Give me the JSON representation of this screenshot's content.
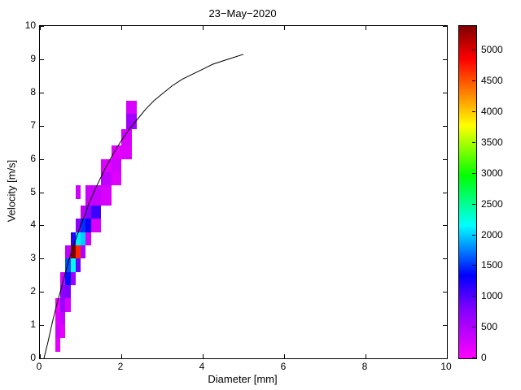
{
  "figure": {
    "background": "#ffffff",
    "axis_color": "#000000"
  },
  "chart_data": {
    "type": "heatmap",
    "title": "23−May−2020",
    "xlabel": "Diameter [mm]",
    "ylabel": "Velocity [m/s]",
    "xlim": [
      0,
      10
    ],
    "ylim": [
      0,
      10
    ],
    "x_ticks": [
      0,
      2,
      4,
      6,
      8,
      10
    ],
    "y_ticks": [
      0,
      1,
      2,
      3,
      4,
      5,
      6,
      7,
      8,
      9,
      10
    ],
    "grid": false,
    "legend": "none",
    "colorbar": {
      "position": "right",
      "vmin": 0,
      "vmax": 5400,
      "ticks": [
        0,
        500,
        1000,
        1500,
        2000,
        2500,
        3000,
        3500,
        4000,
        4500,
        5000
      ]
    },
    "colormap": [
      {
        "t": 0.0,
        "color": "#ff00ff"
      },
      {
        "t": 0.15,
        "color": "#8000ff"
      },
      {
        "t": 0.25,
        "color": "#0000ff"
      },
      {
        "t": 0.4,
        "color": "#00ffff"
      },
      {
        "t": 0.55,
        "color": "#00ff00"
      },
      {
        "t": 0.7,
        "color": "#ffff00"
      },
      {
        "t": 0.8,
        "color": "#ff8000"
      },
      {
        "t": 0.9,
        "color": "#ff0000"
      },
      {
        "t": 1.0,
        "color": "#800000"
      }
    ],
    "cells_format": "[diameter_left_mm, velocity_bottom_ms, width_mm, height_ms, count]",
    "cells": [
      [
        0.375,
        0.2,
        0.125,
        0.4,
        180
      ],
      [
        0.375,
        0.6,
        0.125,
        0.4,
        300
      ],
      [
        0.375,
        1.0,
        0.125,
        0.4,
        220
      ],
      [
        0.375,
        1.4,
        0.125,
        0.4,
        120
      ],
      [
        0.5,
        0.6,
        0.125,
        0.4,
        150
      ],
      [
        0.5,
        1.0,
        0.125,
        0.4,
        350
      ],
      [
        0.5,
        1.4,
        0.125,
        0.4,
        650
      ],
      [
        0.5,
        1.8,
        0.125,
        0.4,
        700
      ],
      [
        0.5,
        2.2,
        0.125,
        0.4,
        300
      ],
      [
        0.625,
        1.4,
        0.125,
        0.4,
        250
      ],
      [
        0.625,
        1.8,
        0.125,
        0.4,
        800
      ],
      [
        0.625,
        2.2,
        0.125,
        0.4,
        1400
      ],
      [
        0.625,
        2.6,
        0.125,
        0.4,
        1600
      ],
      [
        0.625,
        3.0,
        0.125,
        0.4,
        400
      ],
      [
        0.75,
        2.2,
        0.125,
        0.4,
        600
      ],
      [
        0.75,
        2.6,
        0.125,
        0.4,
        2200
      ],
      [
        0.75,
        3.0,
        0.125,
        0.4,
        5400
      ],
      [
        0.75,
        3.4,
        0.125,
        0.4,
        1200
      ],
      [
        0.875,
        2.6,
        0.125,
        0.4,
        900
      ],
      [
        0.875,
        3.0,
        0.125,
        0.4,
        4700
      ],
      [
        0.875,
        3.4,
        0.125,
        0.4,
        2100
      ],
      [
        0.875,
        3.8,
        0.125,
        0.4,
        700
      ],
      [
        0.875,
        4.8,
        0.125,
        0.4,
        300
      ],
      [
        1.0,
        3.0,
        0.125,
        0.4,
        500
      ],
      [
        1.0,
        3.4,
        0.125,
        0.4,
        2000
      ],
      [
        1.0,
        3.8,
        0.125,
        0.4,
        1500
      ],
      [
        1.0,
        4.2,
        0.125,
        0.4,
        400
      ],
      [
        1.125,
        3.4,
        0.125,
        0.4,
        300
      ],
      [
        1.125,
        3.8,
        0.125,
        0.4,
        1300
      ],
      [
        1.125,
        4.2,
        0.125,
        0.4,
        700
      ],
      [
        1.125,
        4.6,
        0.125,
        0.6,
        300
      ],
      [
        1.25,
        3.8,
        0.25,
        0.4,
        250
      ],
      [
        1.25,
        4.2,
        0.25,
        0.4,
        1100
      ],
      [
        1.25,
        4.6,
        0.25,
        0.6,
        350
      ],
      [
        1.5,
        4.6,
        0.25,
        0.6,
        250
      ],
      [
        1.5,
        5.2,
        0.25,
        0.4,
        400
      ],
      [
        1.5,
        5.6,
        0.25,
        0.4,
        200
      ],
      [
        1.75,
        5.2,
        0.25,
        0.4,
        200
      ],
      [
        1.75,
        5.6,
        0.25,
        0.4,
        300
      ],
      [
        1.75,
        6.0,
        0.25,
        0.4,
        180
      ],
      [
        2.0,
        6.0,
        0.25,
        0.4,
        200
      ],
      [
        2.0,
        6.4,
        0.25,
        0.5,
        250
      ],
      [
        2.125,
        6.9,
        0.25,
        0.45,
        600
      ],
      [
        2.125,
        7.35,
        0.25,
        0.4,
        250
      ]
    ],
    "curve": {
      "name": "terminal-velocity-curve",
      "color": "#000000",
      "points": [
        [
          0.1,
          0.0
        ],
        [
          0.2,
          0.5
        ],
        [
          0.3,
          1.05
        ],
        [
          0.4,
          1.55
        ],
        [
          0.5,
          2.0
        ],
        [
          0.6,
          2.45
        ],
        [
          0.7,
          2.9
        ],
        [
          0.8,
          3.3
        ],
        [
          0.9,
          3.65
        ],
        [
          1.0,
          4.0
        ],
        [
          1.1,
          4.3
        ],
        [
          1.2,
          4.65
        ],
        [
          1.4,
          5.2
        ],
        [
          1.6,
          5.7
        ],
        [
          1.8,
          6.15
        ],
        [
          2.0,
          6.55
        ],
        [
          2.2,
          6.9
        ],
        [
          2.4,
          7.2
        ],
        [
          2.6,
          7.5
        ],
        [
          2.8,
          7.75
        ],
        [
          3.0,
          7.95
        ],
        [
          3.25,
          8.2
        ],
        [
          3.5,
          8.4
        ],
        [
          3.75,
          8.55
        ],
        [
          4.0,
          8.7
        ],
        [
          4.25,
          8.85
        ],
        [
          4.5,
          8.95
        ],
        [
          4.75,
          9.05
        ],
        [
          5.0,
          9.15
        ]
      ]
    }
  }
}
